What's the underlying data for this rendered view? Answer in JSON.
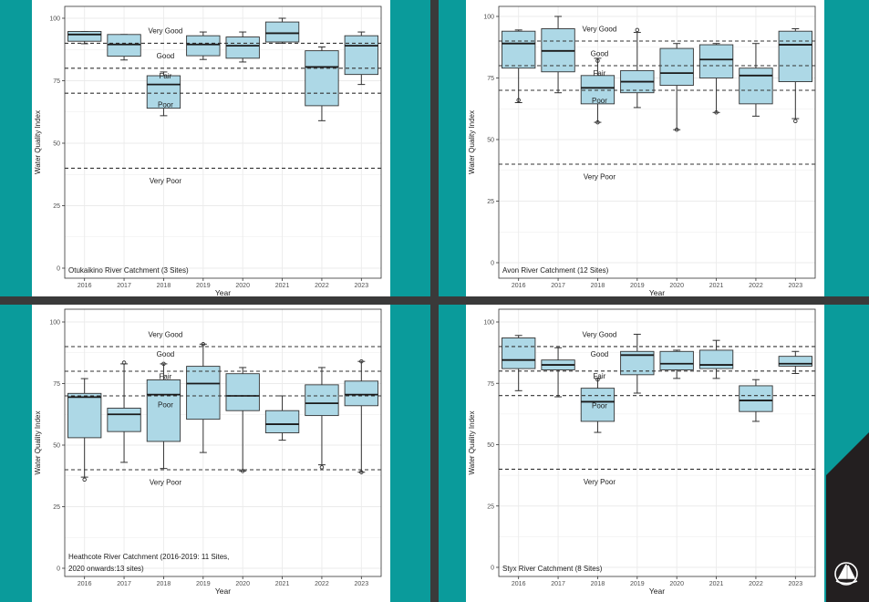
{
  "colors": {
    "teal_background": "#0a9b9b",
    "separator": "#3a3a3a",
    "box_fill": "#add8e6",
    "grid": "#ebebeb",
    "corner": "#231f20"
  },
  "logo_icon": "boat-sail-icon",
  "chart_data": [
    {
      "type": "boxplot",
      "title": "",
      "annotation": "Otukaikino River Catchment (3 Sites)",
      "xlabel": "Year",
      "ylabel": "Water Quality Index",
      "ylim": [
        0,
        100
      ],
      "yticks": [
        0,
        25,
        50,
        75,
        100
      ],
      "categories": [
        "2016",
        "2017",
        "2018",
        "2019",
        "2020",
        "2021",
        "2022",
        "2023"
      ],
      "boxes": [
        {
          "min": 89.8,
          "q1": 90.8,
          "median": 93.5,
          "q3": 94.7,
          "max": 94.7,
          "outliers": []
        },
        {
          "min": 83.3,
          "q1": 84.8,
          "median": 89.5,
          "q3": 93.5,
          "max": 93.5,
          "outliers": []
        },
        {
          "min": 61,
          "q1": 64,
          "median": 73.5,
          "q3": 77,
          "max": 78.5,
          "outliers": []
        },
        {
          "min": 83.5,
          "q1": 85,
          "median": 89.5,
          "q3": 93,
          "max": 94.5,
          "outliers": []
        },
        {
          "min": 82.5,
          "q1": 84,
          "median": 89,
          "q3": 92.5,
          "max": 94.5,
          "outliers": []
        },
        {
          "min": 90,
          "q1": 90.5,
          "median": 94,
          "q3": 98.5,
          "max": 100,
          "outliers": []
        },
        {
          "min": 59,
          "q1": 65,
          "median": 80.5,
          "q3": 87,
          "max": 88.5,
          "outliers": []
        },
        {
          "min": 73.5,
          "q1": 77.5,
          "median": 89,
          "q3": 93,
          "max": 94.5,
          "outliers": []
        }
      ],
      "thresholds": [
        {
          "value": 90,
          "label": "Very Good",
          "label_value": 95
        },
        {
          "value": 80,
          "label": "Good",
          "label_value": 85
        },
        {
          "value": 70,
          "label": "Fair",
          "label_value": 77
        },
        {
          "value": 40,
          "label": "Poor",
          "label_value": 65.5
        },
        {
          "value": null,
          "label": "Very Poor",
          "label_value": 35
        }
      ],
      "grid": true
    },
    {
      "type": "boxplot",
      "title": "",
      "annotation": "Avon River Catchment (12 Sites)",
      "xlabel": "Year",
      "ylabel": "Water Quality Index",
      "ylim": [
        0,
        100
      ],
      "yticks": [
        0,
        25,
        50,
        75,
        100
      ],
      "categories": [
        "2016",
        "2017",
        "2018",
        "2019",
        "2020",
        "2021",
        "2022",
        "2023"
      ],
      "boxes": [
        {
          "min": 65,
          "q1": 79,
          "median": 89,
          "q3": 94,
          "max": 94.5,
          "outliers": [
            66
          ]
        },
        {
          "min": 69,
          "q1": 77.5,
          "median": 86,
          "q3": 95,
          "max": 100,
          "outliers": []
        },
        {
          "min": 57,
          "q1": 64.5,
          "median": 71,
          "q3": 76,
          "max": 83,
          "outliers": [
            57,
            82
          ]
        },
        {
          "min": 63,
          "q1": 69,
          "median": 73.5,
          "q3": 78,
          "max": 93.5,
          "outliers": [
            94.5
          ]
        },
        {
          "min": 54,
          "q1": 72,
          "median": 77,
          "q3": 87,
          "max": 89,
          "outliers": [
            54
          ]
        },
        {
          "min": 61,
          "q1": 75,
          "median": 82.5,
          "q3": 88.5,
          "max": 89,
          "outliers": [
            61
          ]
        },
        {
          "min": 59.5,
          "q1": 64.5,
          "median": 76,
          "q3": 79,
          "max": 89,
          "outliers": []
        },
        {
          "min": 58.5,
          "q1": 73.5,
          "median": 88.5,
          "q3": 94,
          "max": 95,
          "outliers": [
            57.5
          ]
        }
      ],
      "thresholds": [
        {
          "value": 90,
          "label": "Very Good",
          "label_value": 95
        },
        {
          "value": 80,
          "label": "Good",
          "label_value": 85
        },
        {
          "value": 70,
          "label": "Fair",
          "label_value": 77
        },
        {
          "value": 40,
          "label": "Poor",
          "label_value": 66
        },
        {
          "value": null,
          "label": "Very Poor",
          "label_value": 35
        }
      ],
      "grid": true
    },
    {
      "type": "boxplot",
      "title": "",
      "annotation": "Heathcote River Catchment (2016-2019: 11 Sites,\n2020 onwards:13 sites)",
      "xlabel": "Year",
      "ylabel": "Water Quality Index",
      "ylim": [
        0,
        100
      ],
      "yticks": [
        0,
        25,
        50,
        75,
        100
      ],
      "categories": [
        "2016",
        "2017",
        "2018",
        "2019",
        "2020",
        "2021",
        "2022",
        "2023"
      ],
      "boxes": [
        {
          "min": 37,
          "q1": 53,
          "median": 69.5,
          "q3": 71,
          "max": 77,
          "outliers": [
            36
          ]
        },
        {
          "min": 43,
          "q1": 55.5,
          "median": 62.5,
          "q3": 65,
          "max": 83,
          "outliers": [
            83.5
          ]
        },
        {
          "min": 40.5,
          "q1": 51.5,
          "median": 70.5,
          "q3": 76.5,
          "max": 83,
          "outliers": [
            83
          ]
        },
        {
          "min": 47,
          "q1": 60.5,
          "median": 75,
          "q3": 82,
          "max": 91,
          "outliers": [
            91
          ]
        },
        {
          "min": 39.5,
          "q1": 64,
          "median": 70,
          "q3": 79,
          "max": 81.5,
          "outliers": [
            39.5
          ]
        },
        {
          "min": 52,
          "q1": 55,
          "median": 58.5,
          "q3": 64,
          "max": 70,
          "outliers": []
        },
        {
          "min": 42,
          "q1": 62,
          "median": 67,
          "q3": 74.5,
          "max": 81.5,
          "outliers": [
            41
          ]
        },
        {
          "min": 39,
          "q1": 66,
          "median": 70.5,
          "q3": 76,
          "max": 84,
          "outliers": [
            39,
            84
          ]
        }
      ],
      "thresholds": [
        {
          "value": 90,
          "label": "Very Good",
          "label_value": 95
        },
        {
          "value": 80,
          "label": "Good",
          "label_value": 87
        },
        {
          "value": 70,
          "label": "Fair",
          "label_value": 78
        },
        {
          "value": 40,
          "label": "Poor",
          "label_value": 66.5
        },
        {
          "value": null,
          "label": "Very Poor",
          "label_value": 35
        }
      ],
      "grid": true
    },
    {
      "type": "boxplot",
      "title": "",
      "annotation": "Styx River Catchment (8 Sites)",
      "xlabel": "Year",
      "ylabel": "Water Quality Index",
      "ylim": [
        0,
        100
      ],
      "yticks": [
        0,
        25,
        50,
        75,
        100
      ],
      "categories": [
        "2016",
        "2017",
        "2018",
        "2019",
        "2020",
        "2021",
        "2022",
        "2023"
      ],
      "boxes": [
        {
          "min": 72,
          "q1": 81,
          "median": 84.5,
          "q3": 93.5,
          "max": 94.5,
          "outliers": []
        },
        {
          "min": 69.5,
          "q1": 80.5,
          "median": 82.5,
          "q3": 84.5,
          "max": 89.5,
          "outliers": []
        },
        {
          "min": 55,
          "q1": 59.5,
          "median": 67.5,
          "q3": 73,
          "max": 77,
          "outliers": [
            76.5
          ]
        },
        {
          "min": 71,
          "q1": 78.5,
          "median": 86.5,
          "q3": 88,
          "max": 95,
          "outliers": []
        },
        {
          "min": 77,
          "q1": 80.5,
          "median": 83,
          "q3": 88,
          "max": 88.5,
          "outliers": []
        },
        {
          "min": 77,
          "q1": 81,
          "median": 82.5,
          "q3": 88.5,
          "max": 92.5,
          "outliers": []
        },
        {
          "min": 59.5,
          "q1": 63.5,
          "median": 68,
          "q3": 74,
          "max": 76.5,
          "outliers": []
        },
        {
          "min": 79,
          "q1": 82,
          "median": 83,
          "q3": 86,
          "max": 88,
          "outliers": []
        }
      ],
      "thresholds": [
        {
          "value": 90,
          "label": "Very Good",
          "label_value": 95
        },
        {
          "value": 80,
          "label": "Good",
          "label_value": 87
        },
        {
          "value": 70,
          "label": "Fair",
          "label_value": 78
        },
        {
          "value": 40,
          "label": "Poor",
          "label_value": 66
        },
        {
          "value": null,
          "label": "Very Poor",
          "label_value": 35
        }
      ],
      "grid": true
    }
  ]
}
